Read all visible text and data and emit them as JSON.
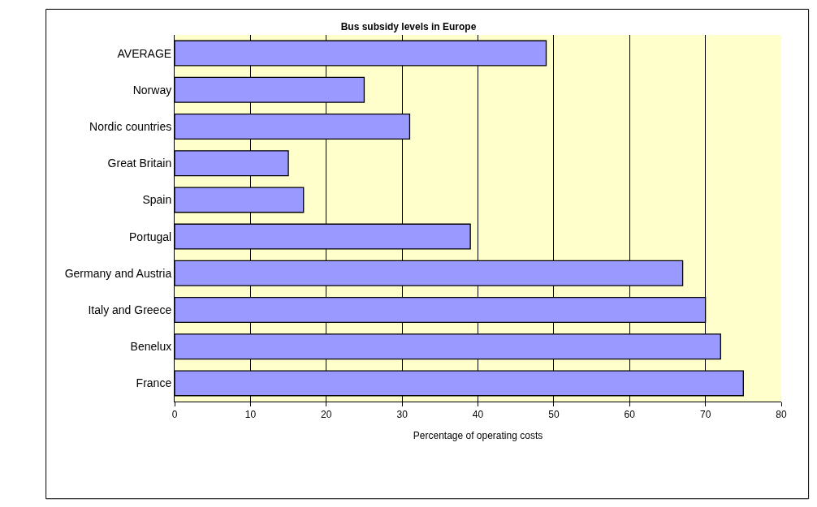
{
  "chart_data": {
    "type": "bar",
    "orientation": "horizontal",
    "title": "Bus subsidy levels in Europe",
    "xlabel": "Percentage of operating costs",
    "categories": [
      "AVERAGE",
      "Norway",
      "Nordic countries",
      "Great Britain",
      "Spain",
      "Portugal",
      "Germany and Austria",
      "Italy and Greece",
      "Benelux",
      "France"
    ],
    "values": [
      49,
      25,
      31,
      15,
      17,
      39,
      67,
      70,
      72,
      75
    ],
    "color": "#9999ff",
    "xlim": [
      0,
      80
    ],
    "xticks": [
      0,
      10,
      20,
      30,
      40,
      50,
      60,
      70,
      80
    ],
    "grid": "x",
    "legend": false
  }
}
